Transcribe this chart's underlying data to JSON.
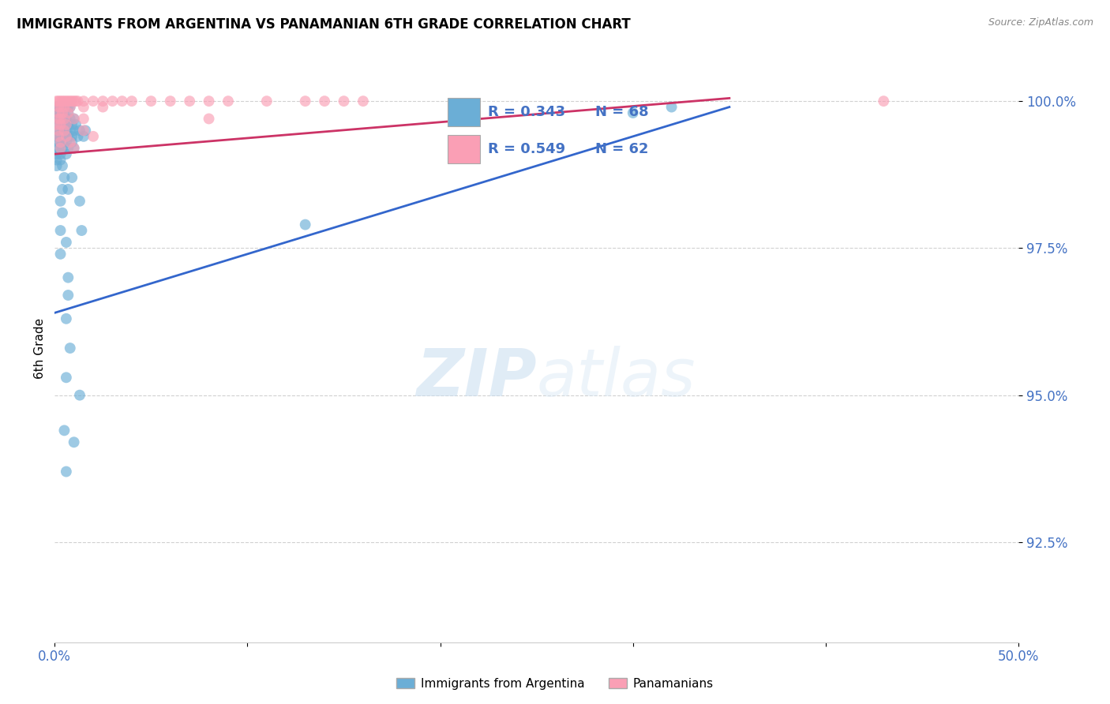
{
  "title": "IMMIGRANTS FROM ARGENTINA VS PANAMANIAN 6TH GRADE CORRELATION CHART",
  "source": "Source: ZipAtlas.com",
  "ylabel": "6th Grade",
  "ytick_labels": [
    "92.5%",
    "95.0%",
    "97.5%",
    "100.0%"
  ],
  "ytick_values": [
    0.925,
    0.95,
    0.975,
    1.0
  ],
  "xlim": [
    0.0,
    0.5
  ],
  "ylim": [
    0.908,
    1.008
  ],
  "legend_label1": "Immigrants from Argentina",
  "legend_label2": "Panamanians",
  "color_blue": "#6baed6",
  "color_pink": "#fa9fb5",
  "watermark_zip": "ZIP",
  "watermark_atlas": "atlas",
  "blue_scatter": [
    [
      0.001,
      0.999
    ],
    [
      0.002,
      0.999
    ],
    [
      0.003,
      0.999
    ],
    [
      0.004,
      0.999
    ],
    [
      0.005,
      0.999
    ],
    [
      0.006,
      0.999
    ],
    [
      0.007,
      0.999
    ],
    [
      0.008,
      0.999
    ],
    [
      0.001,
      0.998
    ],
    [
      0.002,
      0.998
    ],
    [
      0.003,
      0.998
    ],
    [
      0.005,
      0.998
    ],
    [
      0.007,
      0.998
    ],
    [
      0.001,
      0.997
    ],
    [
      0.002,
      0.997
    ],
    [
      0.003,
      0.997
    ],
    [
      0.004,
      0.997
    ],
    [
      0.005,
      0.997
    ],
    [
      0.006,
      0.997
    ],
    [
      0.008,
      0.997
    ],
    [
      0.01,
      0.997
    ],
    [
      0.002,
      0.996
    ],
    [
      0.003,
      0.996
    ],
    [
      0.004,
      0.996
    ],
    [
      0.005,
      0.996
    ],
    [
      0.006,
      0.996
    ],
    [
      0.007,
      0.996
    ],
    [
      0.009,
      0.996
    ],
    [
      0.011,
      0.996
    ],
    [
      0.002,
      0.995
    ],
    [
      0.003,
      0.995
    ],
    [
      0.004,
      0.995
    ],
    [
      0.005,
      0.995
    ],
    [
      0.006,
      0.995
    ],
    [
      0.008,
      0.995
    ],
    [
      0.01,
      0.995
    ],
    [
      0.013,
      0.995
    ],
    [
      0.016,
      0.995
    ],
    [
      0.001,
      0.994
    ],
    [
      0.002,
      0.994
    ],
    [
      0.003,
      0.994
    ],
    [
      0.005,
      0.994
    ],
    [
      0.007,
      0.994
    ],
    [
      0.009,
      0.994
    ],
    [
      0.012,
      0.994
    ],
    [
      0.015,
      0.994
    ],
    [
      0.001,
      0.993
    ],
    [
      0.002,
      0.993
    ],
    [
      0.004,
      0.993
    ],
    [
      0.006,
      0.993
    ],
    [
      0.009,
      0.993
    ],
    [
      0.001,
      0.992
    ],
    [
      0.002,
      0.992
    ],
    [
      0.004,
      0.992
    ],
    [
      0.007,
      0.992
    ],
    [
      0.01,
      0.992
    ],
    [
      0.001,
      0.991
    ],
    [
      0.003,
      0.991
    ],
    [
      0.006,
      0.991
    ],
    [
      0.001,
      0.99
    ],
    [
      0.003,
      0.99
    ],
    [
      0.001,
      0.989
    ],
    [
      0.004,
      0.989
    ],
    [
      0.005,
      0.987
    ],
    [
      0.009,
      0.987
    ],
    [
      0.004,
      0.985
    ],
    [
      0.007,
      0.985
    ],
    [
      0.003,
      0.983
    ],
    [
      0.013,
      0.983
    ],
    [
      0.004,
      0.981
    ],
    [
      0.003,
      0.978
    ],
    [
      0.014,
      0.978
    ],
    [
      0.006,
      0.976
    ],
    [
      0.003,
      0.974
    ],
    [
      0.007,
      0.97
    ],
    [
      0.007,
      0.967
    ],
    [
      0.006,
      0.963
    ],
    [
      0.008,
      0.958
    ],
    [
      0.006,
      0.953
    ],
    [
      0.013,
      0.95
    ],
    [
      0.005,
      0.944
    ],
    [
      0.01,
      0.942
    ],
    [
      0.006,
      0.937
    ],
    [
      0.13,
      0.979
    ],
    [
      0.3,
      0.998
    ],
    [
      0.32,
      0.999
    ]
  ],
  "pink_scatter": [
    [
      0.001,
      1.0
    ],
    [
      0.002,
      1.0
    ],
    [
      0.003,
      1.0
    ],
    [
      0.004,
      1.0
    ],
    [
      0.005,
      1.0
    ],
    [
      0.006,
      1.0
    ],
    [
      0.007,
      1.0
    ],
    [
      0.008,
      1.0
    ],
    [
      0.009,
      1.0
    ],
    [
      0.01,
      1.0
    ],
    [
      0.011,
      1.0
    ],
    [
      0.012,
      1.0
    ],
    [
      0.015,
      1.0
    ],
    [
      0.02,
      1.0
    ],
    [
      0.025,
      1.0
    ],
    [
      0.03,
      1.0
    ],
    [
      0.035,
      1.0
    ],
    [
      0.04,
      1.0
    ],
    [
      0.05,
      1.0
    ],
    [
      0.06,
      1.0
    ],
    [
      0.07,
      1.0
    ],
    [
      0.08,
      1.0
    ],
    [
      0.09,
      1.0
    ],
    [
      0.11,
      1.0
    ],
    [
      0.13,
      1.0
    ],
    [
      0.14,
      1.0
    ],
    [
      0.15,
      1.0
    ],
    [
      0.16,
      1.0
    ],
    [
      0.002,
      0.999
    ],
    [
      0.003,
      0.999
    ],
    [
      0.005,
      0.999
    ],
    [
      0.008,
      0.999
    ],
    [
      0.015,
      0.999
    ],
    [
      0.025,
      0.999
    ],
    [
      0.002,
      0.998
    ],
    [
      0.004,
      0.998
    ],
    [
      0.007,
      0.998
    ],
    [
      0.002,
      0.997
    ],
    [
      0.003,
      0.997
    ],
    [
      0.005,
      0.997
    ],
    [
      0.01,
      0.997
    ],
    [
      0.015,
      0.997
    ],
    [
      0.08,
      0.997
    ],
    [
      0.001,
      0.996
    ],
    [
      0.003,
      0.996
    ],
    [
      0.006,
      0.996
    ],
    [
      0.002,
      0.995
    ],
    [
      0.005,
      0.995
    ],
    [
      0.015,
      0.995
    ],
    [
      0.002,
      0.994
    ],
    [
      0.006,
      0.994
    ],
    [
      0.02,
      0.994
    ],
    [
      0.003,
      0.993
    ],
    [
      0.008,
      0.993
    ],
    [
      0.003,
      0.992
    ],
    [
      0.01,
      0.992
    ],
    [
      0.43,
      1.0
    ]
  ],
  "blue_line_x": [
    0.0,
    0.35
  ],
  "blue_line_y": [
    0.964,
    0.999
  ],
  "pink_line_x": [
    0.0,
    0.35
  ],
  "pink_line_y": [
    0.991,
    1.0005
  ],
  "legend_r1_r": "R = 0.343",
  "legend_r1_n": "N = 68",
  "legend_r2_r": "R = 0.549",
  "legend_r2_n": "N = 62"
}
